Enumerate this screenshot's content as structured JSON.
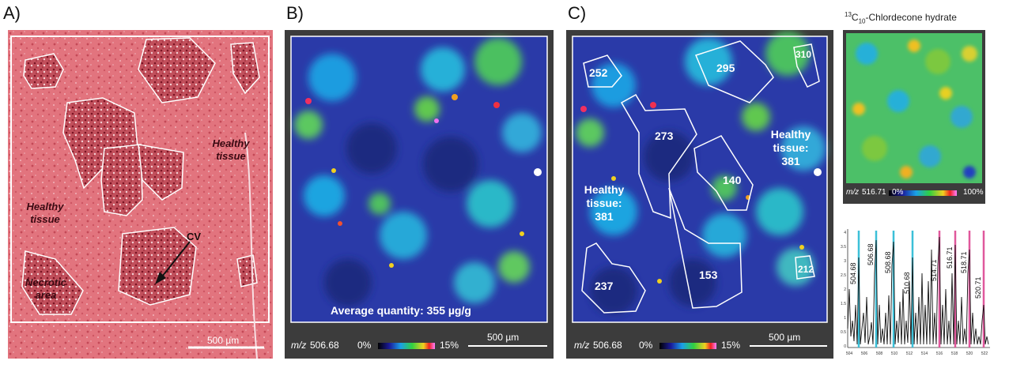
{
  "panels": {
    "a": {
      "label": "A)",
      "healthy_tissue_1": "Healthy tissue",
      "healthy_tissue_2": "Healthy tissue",
      "necrotic_area": "Necrotic area",
      "cv": "CV",
      "scalebar": "500 µm"
    },
    "b": {
      "label": "B)",
      "average": "Average quantity: 355 µg/g",
      "mz_prefix": "m/z",
      "mz_value": "506.68",
      "scale_min": "0%",
      "scale_max": "15%",
      "scalebar": "500 µm"
    },
    "c": {
      "label": "C)",
      "regions": [
        "252",
        "295",
        "310",
        "273",
        "140",
        "153",
        "237",
        "212"
      ],
      "healthy_1": [
        "Healthy",
        "tissue:",
        "381"
      ],
      "healthy_2": [
        "Healthy",
        "tissue:",
        "381"
      ],
      "mz_prefix": "m/z",
      "mz_value": "506.68",
      "scale_min": "0%",
      "scale_max": "15%",
      "scalebar": "500 µm"
    },
    "d": {
      "title_sup": "13",
      "title_c": "C",
      "title_sub": "10",
      "title_rest": "-Chlordecone hydrate",
      "mz_prefix": "m/z",
      "mz_value": "516.71",
      "scale_min": "0%",
      "scale_max": "100%"
    },
    "spectrum": {
      "peak_labels": [
        "504.68",
        "506.68",
        "508.68",
        "510.68",
        "514.71",
        "516.71",
        "518.71",
        "520.71"
      ],
      "y_ticks": [
        "4",
        "3.5",
        "3",
        "2.5",
        "2",
        "1.5",
        "1",
        "0.5",
        "0"
      ],
      "x_ticks": [
        "504",
        "506",
        "508",
        "510",
        "512",
        "514",
        "516",
        "518",
        "520",
        "522"
      ]
    }
  },
  "colors": {
    "tissue_pink": "#e06872",
    "cyan_peak": "#3cc0d8",
    "magenta_peak": "#e0589c",
    "map_dark": "#1c2a8c"
  }
}
